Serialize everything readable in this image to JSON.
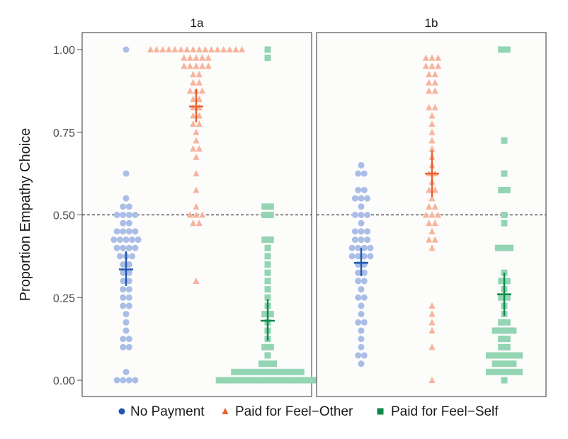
{
  "chart_data": {
    "type": "scatter",
    "ylabel": "Proportion Empathy Choice",
    "ylim": [
      0,
      1
    ],
    "yticks": [
      "0.00",
      "0.25",
      "0.50",
      "0.75",
      "1.00"
    ],
    "reference_line": 0.5,
    "legend_position": "bottom",
    "colors": {
      "no_payment": "#2159b0",
      "paid_other": "#e8602c",
      "paid_self": "#0d8a4a",
      "no_payment_light": "#a9bde6",
      "paid_other_light": "#f7b39c",
      "paid_self_light": "#93d4b3",
      "panel_bg": "#fcfcfb",
      "border": "#333333",
      "refline": "#333333"
    },
    "series": [
      {
        "key": "no_payment",
        "name": "No Payment",
        "shape": "circle"
      },
      {
        "key": "paid_other",
        "name": "Paid for Feel−Other",
        "shape": "triangle"
      },
      {
        "key": "paid_self",
        "name": "Paid for Feel−Self",
        "shape": "square"
      }
    ],
    "panels": [
      {
        "label": "1a",
        "groups": [
          {
            "key": "no_payment",
            "mean": 0.335,
            "ci": [
              0.285,
              0.39
            ],
            "points": [
              1.0,
              0.625,
              0.55,
              0.525,
              0.525,
              0.5,
              0.5,
              0.5,
              0.5,
              0.475,
              0.475,
              0.45,
              0.45,
              0.45,
              0.45,
              0.425,
              0.425,
              0.425,
              0.425,
              0.425,
              0.4,
              0.4,
              0.4,
              0.4,
              0.375,
              0.375,
              0.375,
              0.35,
              0.35,
              0.325,
              0.325,
              0.3,
              0.3,
              0.275,
              0.275,
              0.25,
              0.25,
              0.225,
              0.225,
              0.2,
              0.175,
              0.15,
              0.125,
              0.125,
              0.1,
              0.1,
              0.025,
              0.0,
              0.0,
              0.0,
              0.0
            ]
          },
          {
            "key": "paid_other",
            "mean": 0.828,
            "ci": [
              0.78,
              0.88
            ],
            "points": [
              1.0,
              1.0,
              1.0,
              1.0,
              1.0,
              1.0,
              1.0,
              1.0,
              1.0,
              1.0,
              1.0,
              1.0,
              1.0,
              1.0,
              1.0,
              1.0,
              0.975,
              0.975,
              0.975,
              0.975,
              0.975,
              0.95,
              0.95,
              0.95,
              0.95,
              0.95,
              0.925,
              0.925,
              0.9,
              0.9,
              0.875,
              0.875,
              0.875,
              0.85,
              0.85,
              0.825,
              0.825,
              0.8,
              0.8,
              0.775,
              0.775,
              0.75,
              0.725,
              0.7,
              0.7,
              0.675,
              0.625,
              0.575,
              0.525,
              0.5,
              0.5,
              0.5,
              0.475,
              0.475,
              0.3
            ]
          },
          {
            "key": "paid_self",
            "mean": 0.18,
            "ci": [
              0.12,
              0.245
            ],
            "points": [
              1.0,
              0.975,
              0.525,
              0.525,
              0.5,
              0.5,
              0.425,
              0.425,
              0.4,
              0.375,
              0.35,
              0.325,
              0.3,
              0.275,
              0.25,
              0.225,
              0.2,
              0.2,
              0.175,
              0.15,
              0.125,
              0.1,
              0.1,
              0.075,
              0.05,
              0.05,
              0.05,
              0.025,
              0.025,
              0.025,
              0.025,
              0.025,
              0.025,
              0.025,
              0.025,
              0.025,
              0.025,
              0.025,
              0.025,
              0.0,
              0.0,
              0.0,
              0.0,
              0.0,
              0.0,
              0.0,
              0.0,
              0.0,
              0.0,
              0.0,
              0.0,
              0.0,
              0.0,
              0.0,
              0.0,
              0.0
            ]
          }
        ]
      },
      {
        "label": "1b",
        "groups": [
          {
            "key": "no_payment",
            "mean": 0.355,
            "ci": [
              0.315,
              0.4
            ],
            "points": [
              0.65,
              0.625,
              0.625,
              0.575,
              0.575,
              0.55,
              0.55,
              0.55,
              0.525,
              0.5,
              0.5,
              0.5,
              0.475,
              0.45,
              0.45,
              0.45,
              0.425,
              0.425,
              0.425,
              0.4,
              0.4,
              0.4,
              0.4,
              0.375,
              0.375,
              0.375,
              0.375,
              0.35,
              0.35,
              0.325,
              0.325,
              0.3,
              0.3,
              0.275,
              0.25,
              0.25,
              0.225,
              0.2,
              0.175,
              0.175,
              0.15,
              0.125,
              0.1,
              0.075,
              0.075,
              0.05
            ]
          },
          {
            "key": "paid_other",
            "mean": 0.625,
            "ci": [
              0.555,
              0.695
            ],
            "points": [
              0.975,
              0.975,
              0.975,
              0.95,
              0.95,
              0.95,
              0.925,
              0.925,
              0.9,
              0.9,
              0.875,
              0.875,
              0.825,
              0.825,
              0.8,
              0.775,
              0.75,
              0.725,
              0.7,
              0.675,
              0.65,
              0.625,
              0.625,
              0.6,
              0.575,
              0.575,
              0.55,
              0.525,
              0.525,
              0.5,
              0.5,
              0.5,
              0.475,
              0.475,
              0.45,
              0.425,
              0.425,
              0.4,
              0.225,
              0.2,
              0.175,
              0.15,
              0.1,
              0.0
            ]
          },
          {
            "key": "paid_self",
            "mean": 0.26,
            "ci": [
              0.195,
              0.325
            ],
            "points": [
              1.0,
              1.0,
              0.725,
              0.625,
              0.575,
              0.575,
              0.5,
              0.475,
              0.4,
              0.4,
              0.4,
              0.325,
              0.3,
              0.3,
              0.275,
              0.25,
              0.25,
              0.225,
              0.2,
              0.175,
              0.175,
              0.15,
              0.15,
              0.15,
              0.15,
              0.125,
              0.125,
              0.1,
              0.1,
              0.075,
              0.075,
              0.075,
              0.075,
              0.075,
              0.075,
              0.05,
              0.05,
              0.05,
              0.05,
              0.025,
              0.025,
              0.025,
              0.025,
              0.025,
              0.025,
              0.0
            ]
          }
        ]
      }
    ]
  }
}
